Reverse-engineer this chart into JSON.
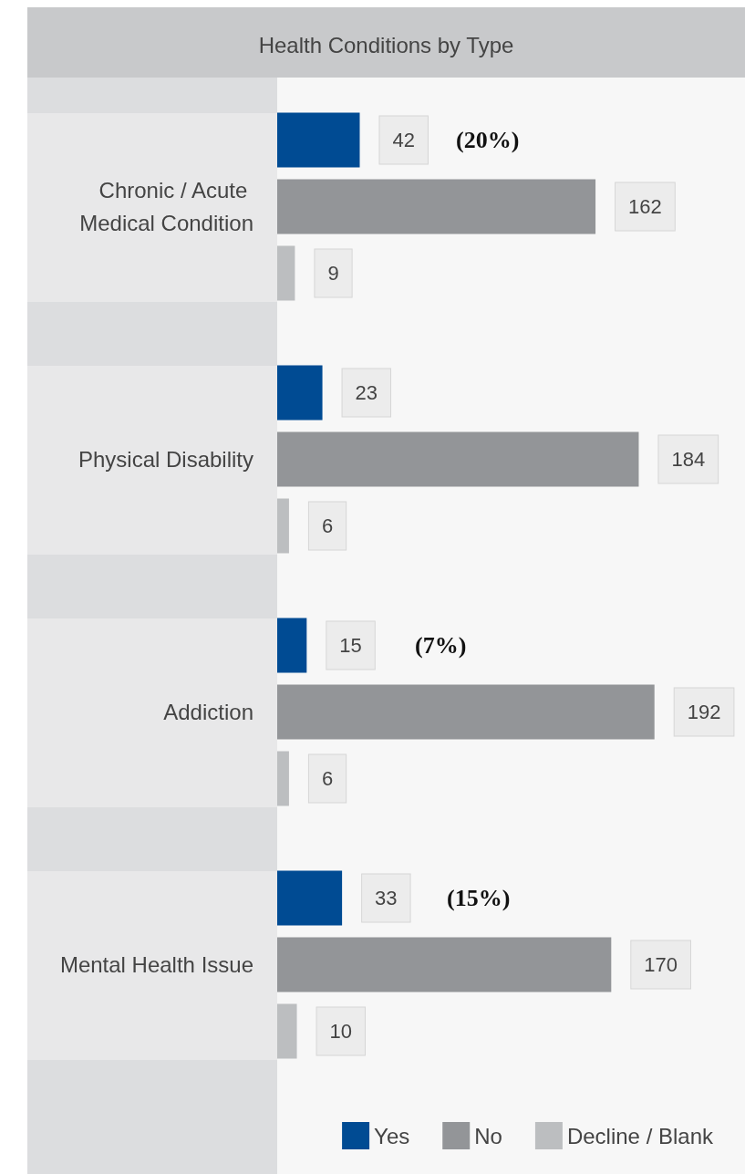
{
  "chart_data": {
    "type": "bar",
    "orientation": "horizontal",
    "title": "Health Conditions by Type",
    "categories": [
      "Chronic / Acute Medical Condition",
      "Physical Disability",
      "Addiction",
      "Mental Health Issue"
    ],
    "series": [
      {
        "name": "Yes",
        "color": "#004b93",
        "values": [
          42,
          23,
          15,
          33
        ]
      },
      {
        "name": "No",
        "color": "#939598",
        "values": [
          162,
          184,
          192,
          170
        ]
      },
      {
        "name": "Decline / Blank",
        "color": "#bcbec0",
        "values": [
          9,
          6,
          6,
          10
        ]
      }
    ],
    "data_labels": true,
    "legend": "bottom right",
    "annotations": [
      "(20%)",
      "(7%)",
      "(15%)"
    ]
  }
}
